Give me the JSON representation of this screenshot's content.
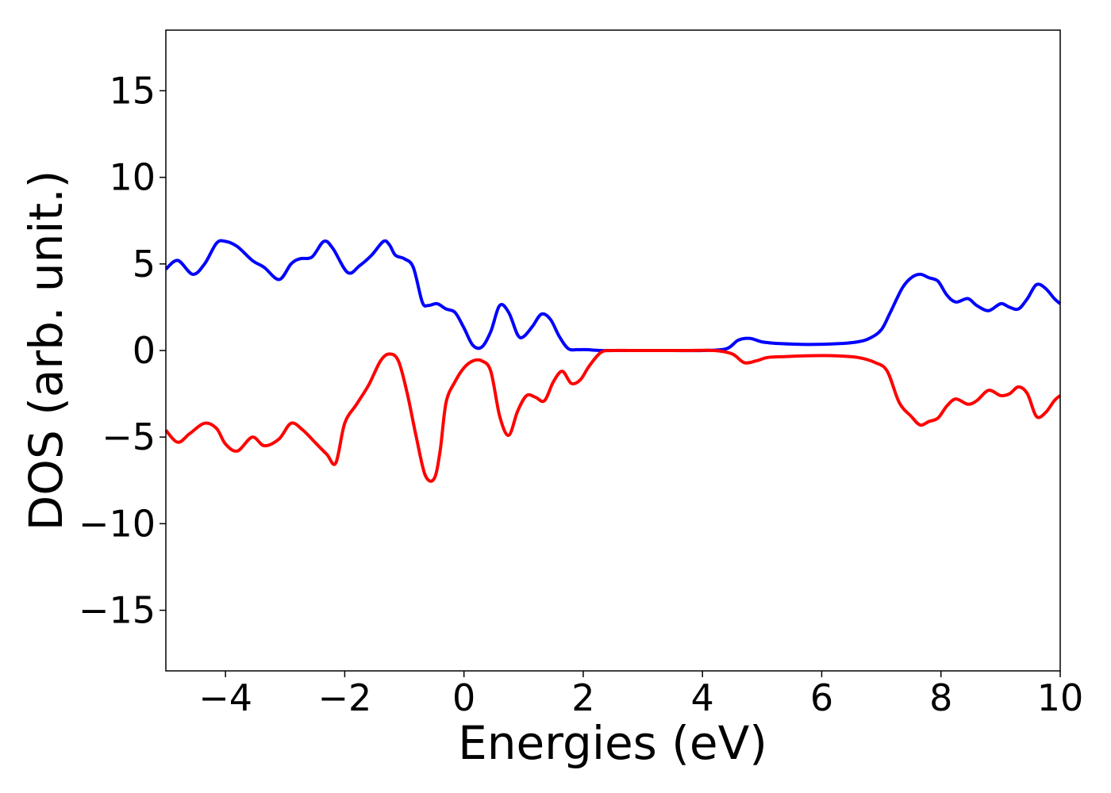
{
  "chart_data": {
    "type": "line",
    "xlabel": "Energies (eV)",
    "ylabel": "DOS (arb. unit.)",
    "xlim": [
      -5,
      10
    ],
    "ylim": [
      -18.5,
      18.5
    ],
    "xticks": [
      -4,
      -2,
      0,
      2,
      4,
      6,
      8,
      10
    ],
    "yticks": [
      -15,
      -10,
      -5,
      0,
      5,
      10,
      15
    ],
    "xtick_labels": [
      "−4",
      "−2",
      "0",
      "2",
      "4",
      "6",
      "8",
      "10"
    ],
    "ytick_labels": [
      "−15",
      "−10",
      "−5",
      "0",
      "5",
      "10",
      "15"
    ],
    "grid": false,
    "legend": "none",
    "series": [
      {
        "color": "#0000ff",
        "x": [
          -5.0,
          -4.8,
          -4.55,
          -4.35,
          -4.15,
          -4.0,
          -3.8,
          -3.55,
          -3.35,
          -3.1,
          -2.9,
          -2.75,
          -2.55,
          -2.35,
          -2.2,
          -1.95,
          -1.75,
          -1.55,
          -1.35,
          -1.25,
          -1.15,
          -1.0,
          -0.85,
          -0.7,
          -0.6,
          -0.45,
          -0.3,
          -0.15,
          0.0,
          0.15,
          0.3,
          0.45,
          0.6,
          0.75,
          0.9,
          1.0,
          1.15,
          1.3,
          1.45,
          1.6,
          1.75,
          1.9,
          2.05,
          2.3,
          2.6,
          3.0,
          3.5,
          4.0,
          4.4,
          4.6,
          4.8,
          5.0,
          5.3,
          5.8,
          6.3,
          6.6,
          6.8,
          7.0,
          7.15,
          7.35,
          7.5,
          7.65,
          7.8,
          7.95,
          8.1,
          8.25,
          8.45,
          8.6,
          8.8,
          9.0,
          9.15,
          9.3,
          9.45,
          9.6,
          9.75,
          9.9,
          10.0
        ],
        "y": [
          4.7,
          5.2,
          4.4,
          5.0,
          6.2,
          6.3,
          6.0,
          5.2,
          4.8,
          4.1,
          5.0,
          5.3,
          5.4,
          6.3,
          5.9,
          4.5,
          4.9,
          5.5,
          6.3,
          6.1,
          5.5,
          5.3,
          4.8,
          2.8,
          2.6,
          2.7,
          2.4,
          2.2,
          1.3,
          0.3,
          0.2,
          1.1,
          2.6,
          2.2,
          0.9,
          0.8,
          1.4,
          2.1,
          1.8,
          0.8,
          0.1,
          0.05,
          0.05,
          0.0,
          0.0,
          0.0,
          0.0,
          0.0,
          0.1,
          0.6,
          0.7,
          0.5,
          0.4,
          0.35,
          0.4,
          0.5,
          0.7,
          1.2,
          2.2,
          3.6,
          4.2,
          4.4,
          4.2,
          4.0,
          3.2,
          2.8,
          3.0,
          2.6,
          2.3,
          2.7,
          2.5,
          2.4,
          3.0,
          3.8,
          3.6,
          3.0,
          2.7
        ]
      },
      {
        "color": "#ff0000",
        "x": [
          -5.0,
          -4.8,
          -4.6,
          -4.35,
          -4.15,
          -4.0,
          -3.8,
          -3.55,
          -3.35,
          -3.1,
          -2.9,
          -2.7,
          -2.5,
          -2.3,
          -2.15,
          -2.0,
          -1.8,
          -1.6,
          -1.4,
          -1.25,
          -1.1,
          -0.95,
          -0.8,
          -0.65,
          -0.5,
          -0.4,
          -0.3,
          -0.15,
          0.0,
          0.15,
          0.3,
          0.45,
          0.6,
          0.75,
          0.9,
          1.05,
          1.2,
          1.35,
          1.5,
          1.65,
          1.8,
          1.95,
          2.1,
          2.3,
          2.5,
          2.8,
          3.2,
          3.7,
          4.2,
          4.5,
          4.7,
          4.9,
          5.1,
          5.4,
          5.8,
          6.2,
          6.6,
          6.9,
          7.1,
          7.3,
          7.5,
          7.65,
          7.8,
          7.95,
          8.1,
          8.25,
          8.45,
          8.6,
          8.8,
          9.0,
          9.15,
          9.3,
          9.45,
          9.6,
          9.75,
          9.9,
          10.0
        ],
        "y": [
          -4.6,
          -5.3,
          -4.8,
          -4.2,
          -4.5,
          -5.4,
          -5.8,
          -5.0,
          -5.5,
          -5.1,
          -4.2,
          -4.6,
          -5.3,
          -6.0,
          -6.5,
          -4.2,
          -3.1,
          -2.0,
          -0.6,
          -0.2,
          -0.6,
          -2.5,
          -5.0,
          -7.2,
          -7.4,
          -5.8,
          -3.0,
          -1.8,
          -1.0,
          -0.6,
          -0.6,
          -1.2,
          -3.8,
          -4.9,
          -3.5,
          -2.6,
          -2.7,
          -2.9,
          -1.8,
          -1.2,
          -1.9,
          -1.7,
          -0.9,
          -0.1,
          0.0,
          0.0,
          0.0,
          0.0,
          0.0,
          -0.2,
          -0.7,
          -0.6,
          -0.4,
          -0.35,
          -0.3,
          -0.3,
          -0.4,
          -0.7,
          -1.2,
          -3.0,
          -3.8,
          -4.3,
          -4.1,
          -3.9,
          -3.2,
          -2.8,
          -3.1,
          -2.9,
          -2.3,
          -2.6,
          -2.5,
          -2.1,
          -2.5,
          -3.8,
          -3.6,
          -2.9,
          -2.6
        ]
      }
    ]
  }
}
